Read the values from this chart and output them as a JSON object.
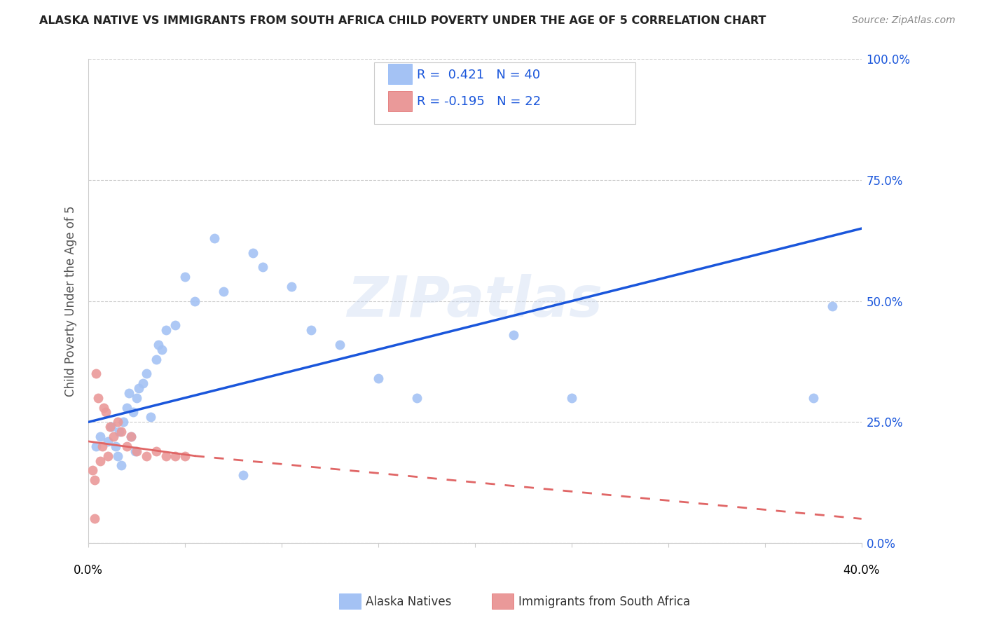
{
  "title": "ALASKA NATIVE VS IMMIGRANTS FROM SOUTH AFRICA CHILD POVERTY UNDER THE AGE OF 5 CORRELATION CHART",
  "source": "Source: ZipAtlas.com",
  "ylabel": "Child Poverty Under the Age of 5",
  "ytick_values": [
    0,
    25,
    50,
    75,
    100
  ],
  "xlim": [
    0,
    40
  ],
  "ylim": [
    0,
    100
  ],
  "legend_bottom_label1": "Alaska Natives",
  "legend_bottom_label2": "Immigrants from South Africa",
  "watermark": "ZIPatlas",
  "blue_color": "#a4c2f4",
  "pink_color": "#ea9999",
  "blue_line_color": "#1a56db",
  "pink_line_color": "#e06666",
  "blue_points_x": [
    0.4,
    0.6,
    1.0,
    1.2,
    1.4,
    1.6,
    1.8,
    2.0,
    2.1,
    2.3,
    2.5,
    2.6,
    2.8,
    3.0,
    3.5,
    3.8,
    4.5,
    5.0,
    5.5,
    6.5,
    7.0,
    8.5,
    9.0,
    10.5,
    11.5,
    13.0,
    15.0,
    17.0,
    22.0,
    25.0,
    37.5,
    38.5,
    1.5,
    1.7,
    2.2,
    2.4,
    3.2,
    3.6,
    4.0,
    8.0
  ],
  "blue_points_y": [
    20,
    22,
    21,
    24,
    20,
    23,
    25,
    28,
    31,
    27,
    30,
    32,
    33,
    35,
    38,
    40,
    45,
    55,
    50,
    63,
    52,
    60,
    57,
    53,
    44,
    41,
    34,
    30,
    43,
    30,
    30,
    49,
    18,
    16,
    22,
    19,
    26,
    41,
    44,
    14
  ],
  "pink_points_x": [
    0.2,
    0.3,
    0.4,
    0.5,
    0.6,
    0.7,
    0.8,
    0.9,
    1.0,
    1.1,
    1.3,
    1.5,
    1.7,
    2.0,
    2.2,
    2.5,
    3.0,
    3.5,
    4.0,
    5.0,
    0.3,
    4.5
  ],
  "pink_points_y": [
    15,
    13,
    35,
    30,
    17,
    20,
    28,
    27,
    18,
    24,
    22,
    25,
    23,
    20,
    22,
    19,
    18,
    19,
    18,
    18,
    5,
    18
  ],
  "blue_line_x0": 0,
  "blue_line_x1": 40,
  "blue_line_y0": 25,
  "blue_line_y1": 65,
  "pink_solid_x0": 0,
  "pink_solid_x1": 5.5,
  "pink_solid_y0": 21,
  "pink_solid_y1": 18,
  "pink_dash_x0": 5.5,
  "pink_dash_x1": 40,
  "pink_dash_y0": 18,
  "pink_dash_y1": 5
}
